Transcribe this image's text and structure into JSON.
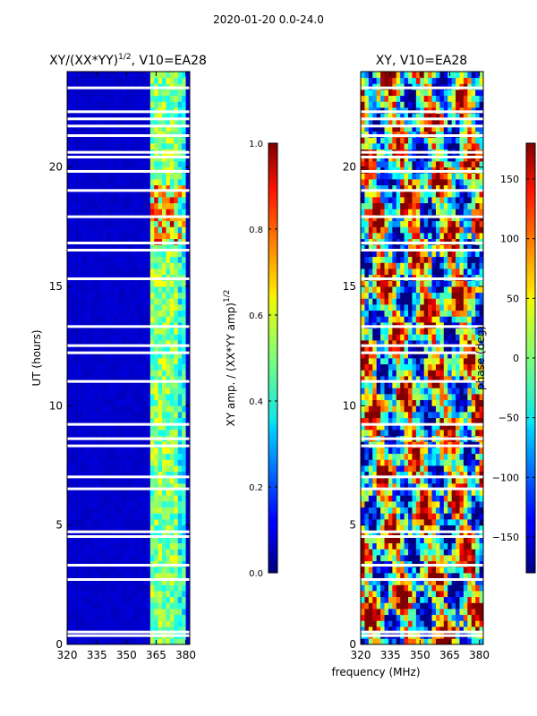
{
  "figure": {
    "suptitle": "2020-01-20 0.0-24.0",
    "shared_xlabel": "frequency (MHz)"
  },
  "chart_data": [
    {
      "type": "heatmap",
      "title": "XY/(XX*YY)^1/2, V10=EA28",
      "title_main": "XY/(XX*YY)",
      "title_sup": "1/2",
      "title_tail": ", V10=EA28",
      "xlabel": "frequency (MHz)",
      "ylabel": "UT (hours)",
      "xlim": [
        320,
        382
      ],
      "ylim": [
        0,
        24
      ],
      "xticks": [
        320,
        335,
        350,
        365,
        380
      ],
      "yticks": [
        0,
        5,
        10,
        15,
        20
      ],
      "colorbar": {
        "label_main": "XY amp. / (XX*YY amp)",
        "label_sup": "1/2",
        "range": [
          0.0,
          1.0
        ],
        "ticks": [
          "0.0",
          "0.2",
          "0.4",
          "0.6",
          "0.8",
          "1.0"
        ],
        "tick_values": [
          0.0,
          0.2,
          0.4,
          0.6,
          0.8,
          1.0
        ]
      },
      "description": "Normalized XY amplitude; mostly ~0.05 (dark blue) except elevated ~0.4-0.6 in 362-380 MHz band, with ~0.8-0.9 patches near 17-19 UT."
    },
    {
      "type": "heatmap",
      "title": "XY, V10=EA28",
      "xlabel": "frequency (MHz)",
      "ylabel": "",
      "xlim": [
        320,
        382
      ],
      "ylim": [
        0,
        24
      ],
      "xticks": [
        320,
        335,
        350,
        365,
        380
      ],
      "yticks": [
        0,
        5,
        10,
        15,
        20
      ],
      "colorbar": {
        "label_main": "phase (deg)",
        "range": [
          -180,
          180
        ],
        "ticks": [
          "150",
          "100",
          "50",
          "0",
          "−50",
          "−100",
          "−150"
        ],
        "tick_values": [
          150,
          100,
          50,
          0,
          -50,
          -100,
          -150
        ]
      },
      "description": "XY phase in degrees, spanning -180 to 180 with noisy structure across all frequencies."
    }
  ],
  "flagged_ut_bands": [
    0.35,
    0.5,
    2.7,
    3.3,
    4.5,
    4.7,
    6.5,
    7.0,
    8.3,
    8.6,
    9.2,
    11.0,
    12.2,
    12.5,
    13.3,
    15.3,
    16.5,
    16.8,
    17.9,
    19.0,
    19.8,
    20.4,
    20.6,
    21.3,
    21.7,
    22.0,
    22.3,
    23.3
  ]
}
